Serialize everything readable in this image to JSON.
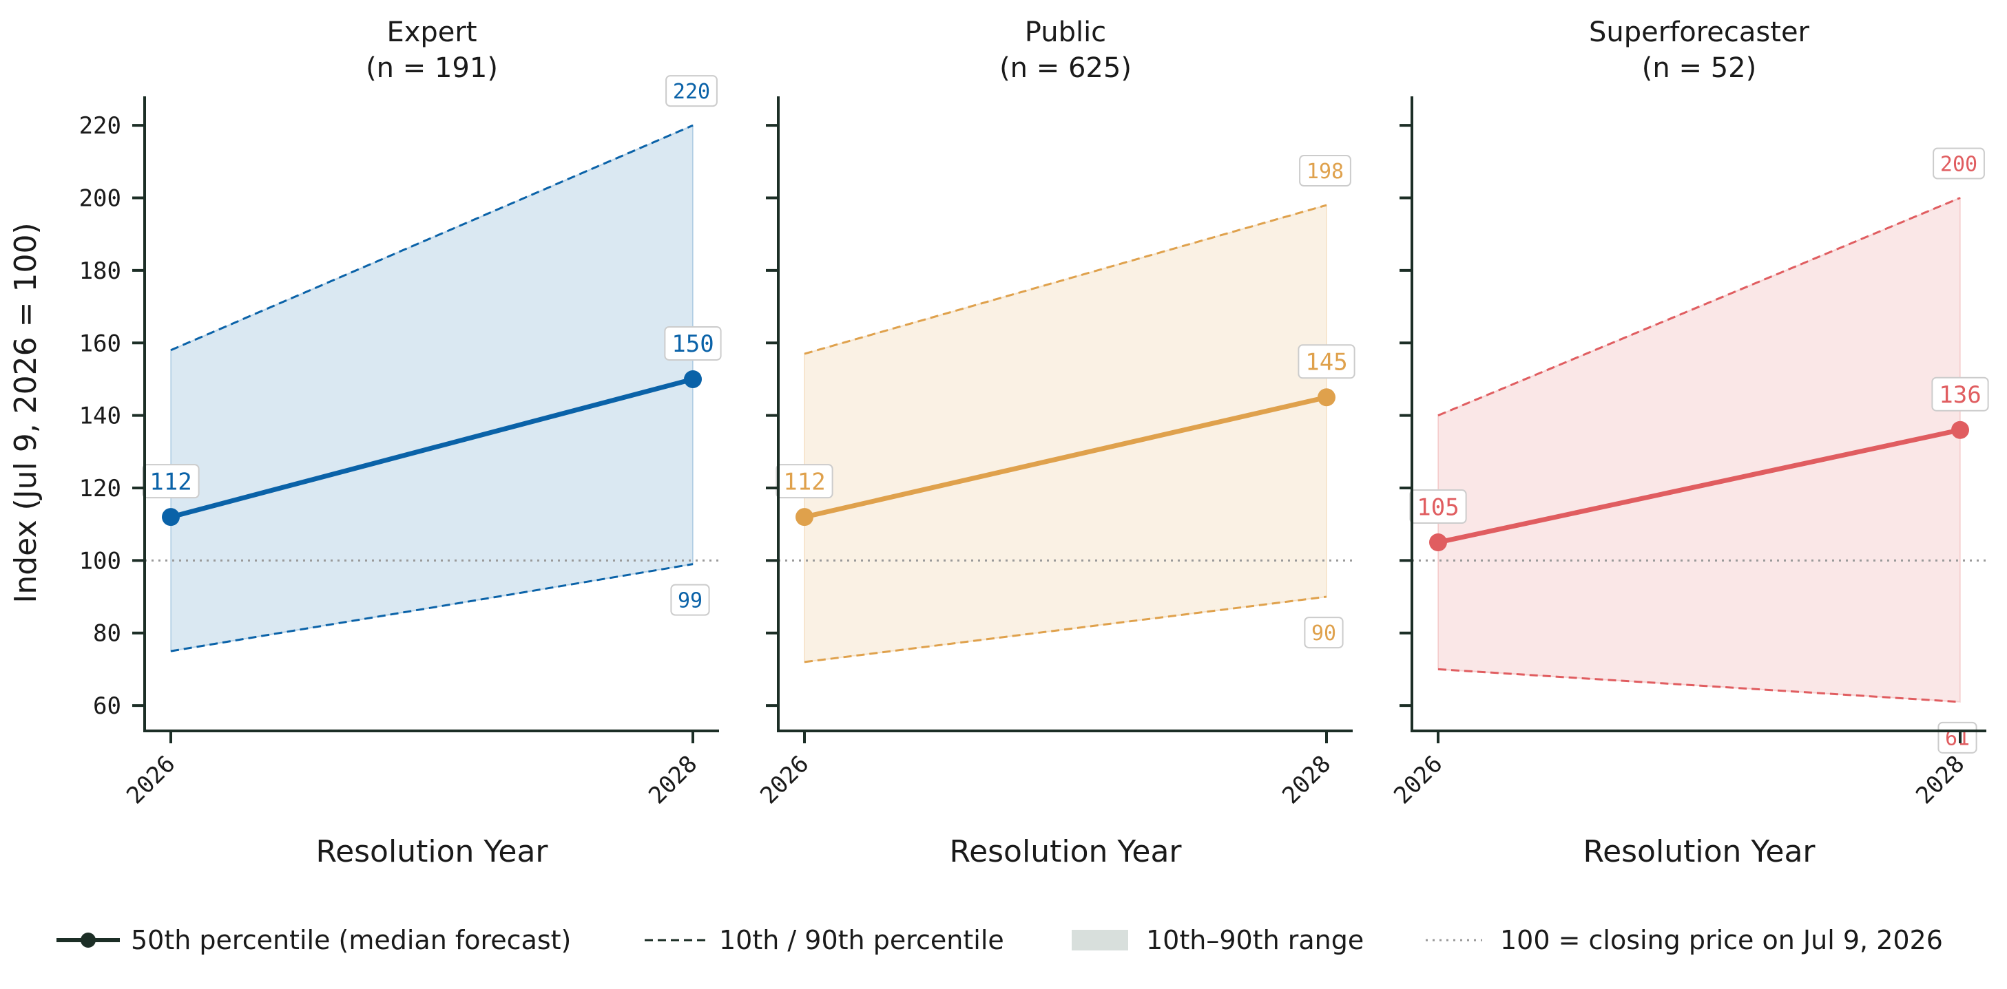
{
  "chart_data": [
    {
      "type": "line",
      "panel_title": "Expert",
      "panel_subtitle": "(n = 191)",
      "color": "#0a62a8",
      "x": [
        "2026",
        "2028"
      ],
      "median": [
        112,
        150
      ],
      "p10": [
        75,
        99
      ],
      "p90": [
        158,
        220
      ],
      "data_labels": {
        "median": [
          "112",
          "150"
        ],
        "p10_end": "99",
        "p90_end": "220"
      },
      "xlabel": "Resolution Year",
      "ylabel": "Index (Jul 9, 2026 = 100)"
    },
    {
      "type": "line",
      "panel_title": "Public",
      "panel_subtitle": "(n = 625)",
      "color": "#dfa14c",
      "x": [
        "2026",
        "2028"
      ],
      "median": [
        112,
        145
      ],
      "p10": [
        72,
        90
      ],
      "p90": [
        157,
        198
      ],
      "data_labels": {
        "median": [
          "112",
          "145"
        ],
        "p10_end": "90",
        "p90_end": "198"
      },
      "xlabel": "Resolution Year",
      "ylabel": ""
    },
    {
      "type": "line",
      "panel_title": "Superforecaster",
      "panel_subtitle": "(n = 52)",
      "color": "#e05d60",
      "x": [
        "2026",
        "2028"
      ],
      "median": [
        105,
        136
      ],
      "p10": [
        70,
        61
      ],
      "p90": [
        140,
        200
      ],
      "data_labels": {
        "median": [
          "105",
          "136"
        ],
        "p10_end": "61",
        "p90_end": "200"
      },
      "xlabel": "Resolution Year",
      "ylabel": ""
    }
  ],
  "axes": {
    "ylim": [
      53,
      228
    ],
    "yticks": [
      60,
      80,
      100,
      120,
      140,
      160,
      180,
      200,
      220
    ],
    "reference_line": 100,
    "shared_y": true,
    "grid": false
  },
  "legend": {
    "placement": "bottom",
    "items": [
      {
        "kind": "median",
        "label": "50th percentile (median forecast)"
      },
      {
        "kind": "percentile",
        "label": "10th / 90th percentile"
      },
      {
        "kind": "range",
        "label": "10th–90th range"
      },
      {
        "kind": "reference",
        "label": "100 = closing price on Jul 9, 2026"
      }
    ]
  },
  "colors": {
    "axis": "#1c2e26",
    "reference": "#9a9a9a",
    "legend_swatch": "#d8dfdc"
  }
}
